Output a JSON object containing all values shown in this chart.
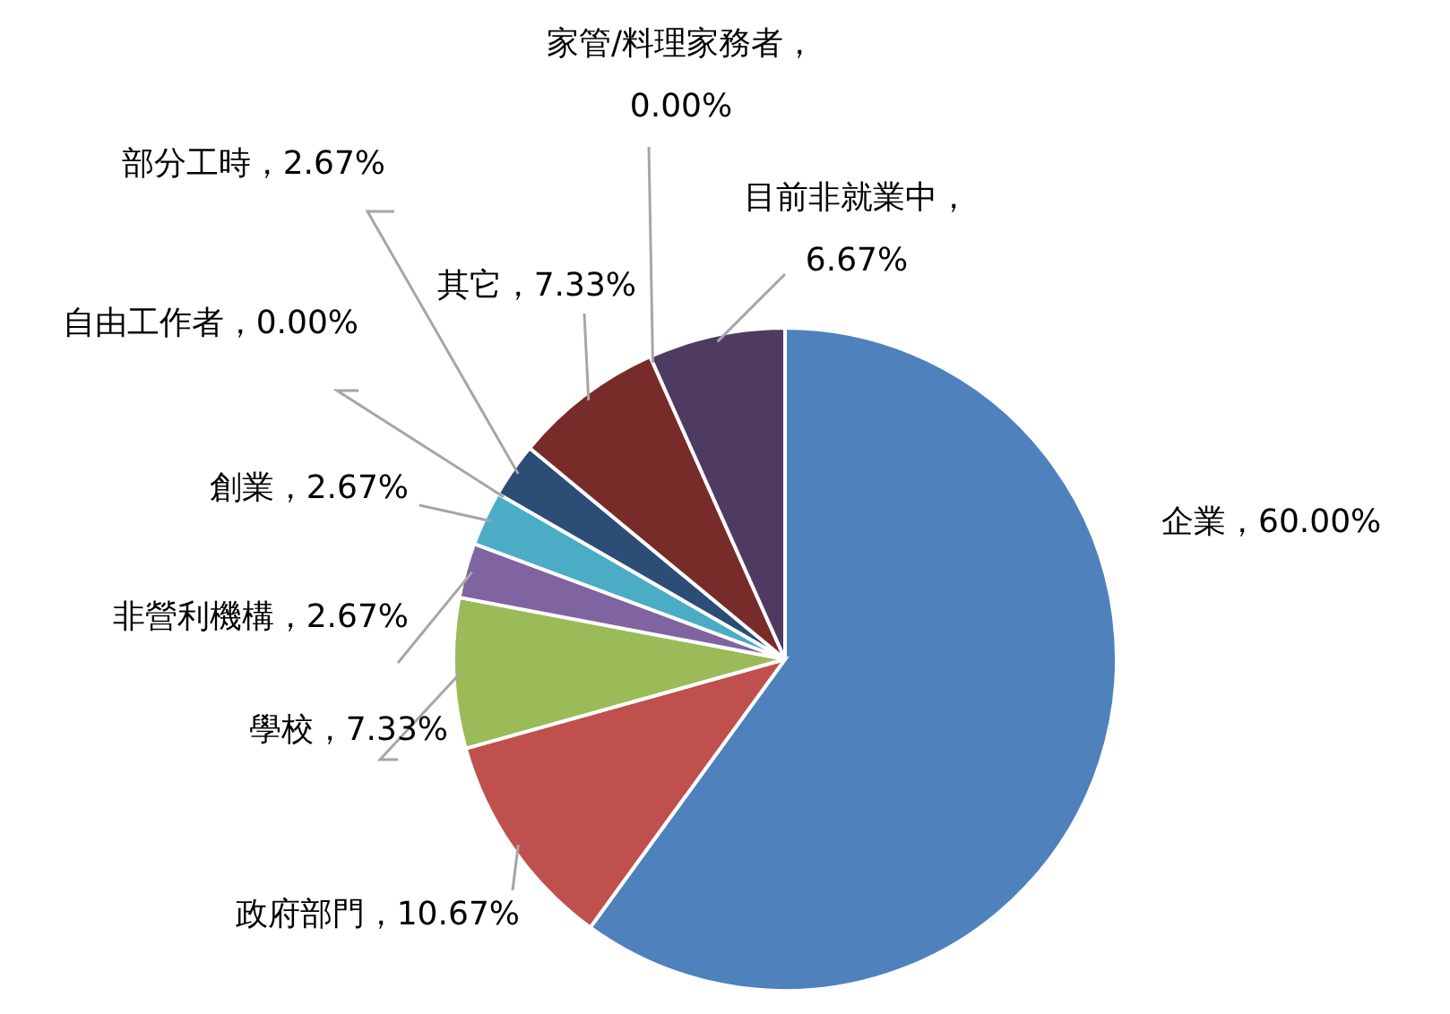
{
  "chart_data": {
    "type": "pie",
    "categories": [
      "企業",
      "政府部門",
      "學校",
      "非營利機構",
      "創業",
      "自由工作者",
      "部分工時",
      "其它",
      "家管/料理家務者",
      "目前非就業中"
    ],
    "values": [
      60.0,
      10.67,
      7.33,
      2.67,
      2.67,
      0.0,
      2.67,
      7.33,
      0.0,
      6.67
    ],
    "value_labels": [
      "，60.00%",
      "，10.67%",
      "，7.33%",
      "，2.67%",
      "，2.67%",
      "，0.00%",
      "，2.67%",
      "，7.33%",
      "，0.00%",
      "，6.67%"
    ],
    "colors": [
      "#4f81bd",
      "#c0504d",
      "#9bbb59",
      "#8064a2",
      "#4bacc6",
      "#f79646",
      "#2c4d75",
      "#772c2a",
      "#4a7ebb",
      "#4f3b62"
    ]
  }
}
